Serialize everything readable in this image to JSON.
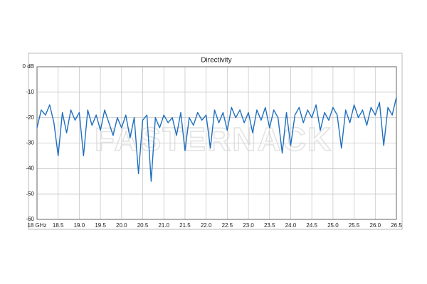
{
  "chart_data": {
    "type": "line",
    "title": "Directivity",
    "watermark": "FASTERNACK",
    "x": [
      18.0,
      18.1,
      18.2,
      18.3,
      18.4,
      18.5,
      18.6,
      18.7,
      18.8,
      18.9,
      19.0,
      19.1,
      19.2,
      19.3,
      19.4,
      19.5,
      19.6,
      19.7,
      19.8,
      19.9,
      20.0,
      20.1,
      20.2,
      20.3,
      20.4,
      20.5,
      20.6,
      20.7,
      20.8,
      20.9,
      21.0,
      21.1,
      21.2,
      21.3,
      21.4,
      21.5,
      21.6,
      21.7,
      21.8,
      21.9,
      22.0,
      22.1,
      22.2,
      22.3,
      22.4,
      22.5,
      22.6,
      22.7,
      22.8,
      22.9,
      23.0,
      23.1,
      23.2,
      23.3,
      23.4,
      23.5,
      23.6,
      23.7,
      23.8,
      23.9,
      24.0,
      24.1,
      24.2,
      24.3,
      24.4,
      24.5,
      24.6,
      24.7,
      24.8,
      24.9,
      25.0,
      25.1,
      25.2,
      25.3,
      25.4,
      25.5,
      25.6,
      25.7,
      25.8,
      25.9,
      26.0,
      26.1,
      26.2,
      26.3,
      26.4,
      26.5
    ],
    "values": [
      -24,
      -17,
      -19,
      -15,
      -22,
      -35,
      -18,
      -26,
      -17,
      -21,
      -18,
      -35,
      -17,
      -23,
      -19,
      -25,
      -17,
      -22,
      -27,
      -20,
      -24,
      -19,
      -28,
      -20,
      -42,
      -21,
      -19,
      -45,
      -20,
      -24,
      -19,
      -22,
      -20,
      -27,
      -18,
      -33,
      -20,
      -23,
      -18,
      -21,
      -19,
      -32,
      -17,
      -22,
      -18,
      -25,
      -16,
      -20,
      -17,
      -22,
      -18,
      -26,
      -17,
      -21,
      -16,
      -24,
      -17,
      -20,
      -34,
      -18,
      -31,
      -19,
      -16,
      -22,
      -17,
      -20,
      -15,
      -25,
      -18,
      -21,
      -16,
      -19,
      -32,
      -17,
      -22,
      -15,
      -20,
      -17,
      -23,
      -16,
      -19,
      -14,
      -31,
      -16,
      -19,
      -12
    ],
    "color": "#1f6fbf",
    "xlim": [
      18,
      26.5
    ],
    "xticks": [
      {
        "value": 18,
        "label": "18 GHz"
      },
      18.5,
      {
        "value": 19,
        "label": "19.0"
      },
      19.5,
      {
        "value": 20,
        "label": "20.0"
      },
      20.5,
      {
        "value": 21,
        "label": "21.0"
      },
      21.5,
      {
        "value": 22,
        "label": "22.0"
      },
      22.5,
      {
        "value": 23,
        "label": "23.0"
      },
      23.5,
      {
        "value": 24,
        "label": "24.0"
      },
      24.5,
      {
        "value": 25,
        "label": "25.0"
      },
      25.5,
      {
        "value": 26,
        "label": "26.0"
      },
      26.5
    ],
    "ylim": [
      -60,
      0
    ],
    "yticks": [
      {
        "value": 0,
        "label": "0 dB"
      },
      -10,
      -20,
      -30,
      -40,
      -50,
      -60
    ],
    "grid": true
  }
}
